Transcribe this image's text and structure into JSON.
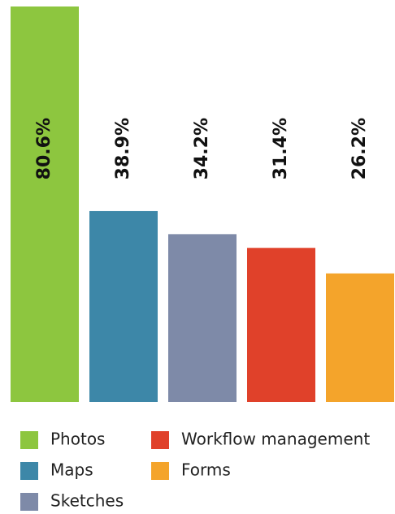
{
  "chart_data": {
    "type": "bar",
    "categories": [
      "Photos",
      "Maps",
      "Sketches",
      "Workflow management",
      "Forms"
    ],
    "values": [
      80.6,
      38.9,
      34.2,
      31.4,
      26.2
    ],
    "value_labels": [
      "80.6%",
      "38.9%",
      "34.2%",
      "31.4%",
      "26.2%"
    ],
    "colors": [
      "#8dc63f",
      "#3d87a8",
      "#7e8aa8",
      "#e0412a",
      "#f4a42b"
    ]
  }
}
